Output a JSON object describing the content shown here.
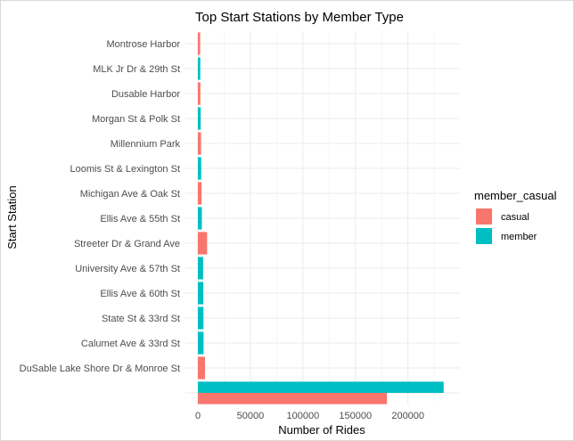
{
  "chart_data": {
    "type": "bar",
    "orientation": "horizontal",
    "title": "Top Start Stations by Member Type",
    "xlabel": "Number of Rides",
    "ylabel": "Start Station",
    "xlim": [
      0,
      240000
    ],
    "x_ticks": [
      0,
      50000,
      100000,
      150000,
      200000
    ],
    "x_tick_labels": [
      "0",
      "50000",
      "100000",
      "150000",
      "200000"
    ],
    "grid": true,
    "legend": {
      "title": "member_casual",
      "placement": "right",
      "entries": [
        {
          "name": "casual",
          "color": "#F8766D"
        },
        {
          "name": "member",
          "color": "#00BFC4"
        }
      ]
    },
    "categories": [
      "Montrose Harbor",
      "MLK Jr Dr & 29th St",
      "Dusable Harbor",
      "Morgan St & Polk St",
      "Millennium Park",
      "Loomis St & Lexington St",
      "Michigan Ave & Oak St",
      "Ellis Ave & 55th St",
      "Streeter Dr & Grand Ave",
      "University Ave & 57th St",
      "Ellis Ave & 60th St",
      "State St & 33rd St",
      "Calumet Ave & 33rd St",
      "DuSable Lake Shore Dr & Monroe St",
      ""
    ],
    "series": [
      {
        "name": "casual",
        "color": "#F8766D",
        "values": [
          2200,
          null,
          2400,
          null,
          3000,
          null,
          3500,
          null,
          8800,
          null,
          null,
          null,
          null,
          6800,
          180000
        ]
      },
      {
        "name": "member",
        "color": "#00BFC4",
        "values": [
          null,
          2300,
          null,
          2700,
          null,
          3200,
          null,
          3800,
          null,
          5000,
          5200,
          5300,
          5400,
          null,
          234000
        ]
      }
    ]
  }
}
